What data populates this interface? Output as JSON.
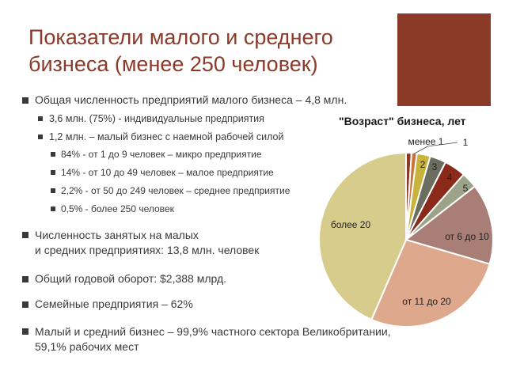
{
  "slide": {
    "title_line1": "Показатели малого и среднего",
    "title_line2": "бизнеса (менее 250 человек)",
    "accent_color": "#8b3a28"
  },
  "bullets": {
    "b1": "Общая численность предприятий малого бизнеса – 4,8 млн.",
    "b1_1": "3,6 млн. (75%) - индивидуальные предприятия",
    "b1_2": "1,2 млн. – малый бизнес с наемной рабочей силой",
    "b1_2_1": "84% - от 1 до 9 человек – микро предприятие",
    "b1_2_2": "14% - от 10 до 49 человек – малое предприятие",
    "b1_2_3": "2,2% - от 50 до 249 человек – среднее предприятие",
    "b1_2_4": "0,5% - более 250 человек",
    "b2_line1": "Численность занятых на малых",
    "b2_line2": "и средних предприятиях: 13,8 млн. человек",
    "b3": "Общий годовой оборот: $2,388 млрд.",
    "b4": "Семейные предприятия – 62%",
    "b5_line1": "Малый и средний бизнес – 99,9% частного сектора Великобритании,",
    "b5_line2": "59,1% рабочих мест"
  },
  "chart_data": {
    "type": "pie",
    "title": "\"Возраст\" бизнеса, лет",
    "categories": [
      "менее 1",
      "1",
      "2",
      "3",
      "4",
      "5",
      "от 6 до 10",
      "от 11 до 20",
      "более 20"
    ],
    "values": [
      1.0,
      1.0,
      2.5,
      3.0,
      4.0,
      3.0,
      15.0,
      27.0,
      43.5
    ],
    "colors": [
      "#8b3a28",
      "#c9743a",
      "#c8b43c",
      "#6b6e5f",
      "#8b2a1a",
      "#9da389",
      "#a87e76",
      "#dea88c",
      "#d8cc8c"
    ]
  }
}
